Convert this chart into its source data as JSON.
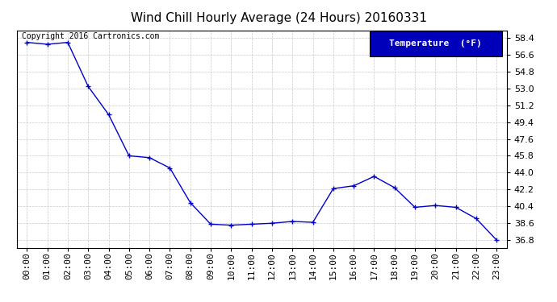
{
  "title": "Wind Chill Hourly Average (24 Hours) 20160331",
  "copyright_text": "Copyright 2016 Cartronics.com",
  "legend_label": "Temperature  (°F)",
  "hours": [
    0,
    1,
    2,
    3,
    4,
    5,
    6,
    7,
    8,
    9,
    10,
    11,
    12,
    13,
    14,
    15,
    16,
    17,
    18,
    19,
    20,
    21,
    22,
    23
  ],
  "hour_labels": [
    "00:00",
    "01:00",
    "02:00",
    "03:00",
    "04:00",
    "05:00",
    "06:00",
    "07:00",
    "08:00",
    "09:00",
    "10:00",
    "11:00",
    "12:00",
    "13:00",
    "14:00",
    "15:00",
    "16:00",
    "17:00",
    "18:00",
    "19:00",
    "20:00",
    "21:00",
    "22:00",
    "23:00"
  ],
  "values": [
    57.9,
    57.7,
    57.9,
    53.2,
    50.2,
    45.8,
    45.6,
    44.5,
    40.8,
    38.5,
    38.4,
    38.5,
    38.6,
    38.8,
    38.7,
    42.3,
    42.6,
    43.6,
    42.4,
    40.3,
    40.5,
    40.3,
    39.1,
    36.8
  ],
  "ylim_min": 36.0,
  "ylim_max": 59.2,
  "yticks": [
    36.8,
    38.6,
    40.4,
    42.2,
    44.0,
    45.8,
    47.6,
    49.4,
    51.2,
    53.0,
    54.8,
    56.6,
    58.4
  ],
  "line_color": "#0000cc",
  "marker_color": "#0000cc",
  "bg_color": "#ffffff",
  "grid_color": "#bbbbbb",
  "title_fontsize": 11,
  "tick_fontsize": 8,
  "copyright_fontsize": 7,
  "legend_bg_color": "#0000bb",
  "legend_text_color": "#ffffff",
  "legend_fontsize": 8
}
